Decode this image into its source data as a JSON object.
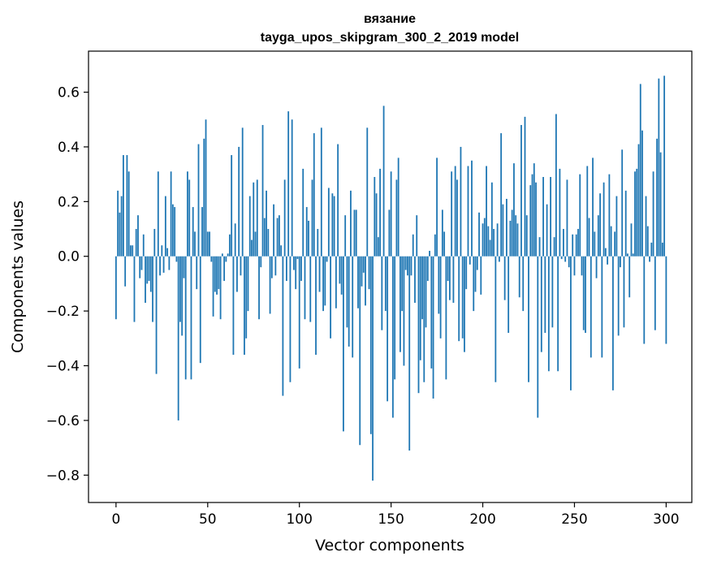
{
  "chart_data": {
    "type": "bar",
    "title_line1": "вязание",
    "title_line2": "tayga_upos_skipgram_300_2_2019 model",
    "xlabel": "Vector components",
    "ylabel": "Components values",
    "xlim": [
      -15,
      314
    ],
    "ylim": [
      -0.9,
      0.75
    ],
    "grid": false,
    "bar_color": "#1f77b4",
    "x_ticks": [
      0,
      50,
      100,
      150,
      200,
      250,
      300
    ],
    "y_ticks": [
      -0.8,
      -0.6,
      -0.4,
      -0.2,
      0.0,
      0.2,
      0.4,
      0.6
    ],
    "x_tick_labels": [
      "0",
      "50",
      "100",
      "150",
      "200",
      "250",
      "300"
    ],
    "y_tick_labels": [
      "−0.8",
      "−0.6",
      "−0.4",
      "−0.2",
      "0.0",
      "0.2",
      "0.4",
      "0.6"
    ],
    "values": [
      -0.23,
      0.24,
      0.16,
      0.22,
      0.37,
      -0.11,
      0.37,
      0.31,
      0.04,
      0.04,
      -0.24,
      0.1,
      0.15,
      -0.08,
      -0.05,
      0.08,
      -0.17,
      -0.1,
      -0.09,
      -0.13,
      -0.24,
      0.1,
      -0.43,
      0.31,
      -0.07,
      0.04,
      -0.06,
      0.22,
      0.03,
      -0.05,
      0.31,
      0.19,
      0.18,
      -0.02,
      -0.6,
      -0.24,
      -0.29,
      -0.08,
      -0.45,
      0.31,
      0.28,
      -0.45,
      0.18,
      0.09,
      -0.12,
      0.41,
      -0.39,
      0.18,
      0.43,
      0.5,
      0.09,
      0.09,
      -0.02,
      -0.22,
      -0.13,
      -0.14,
      -0.12,
      -0.23,
      0.01,
      -0.09,
      -0.02,
      0.01,
      0.08,
      0.37,
      -0.36,
      0.12,
      -0.13,
      0.4,
      -0.07,
      0.47,
      -0.36,
      -0.3,
      -0.2,
      0.22,
      0.06,
      0.27,
      0.09,
      0.28,
      -0.23,
      -0.04,
      0.48,
      0.14,
      0.24,
      0.1,
      -0.21,
      -0.08,
      0.19,
      -0.07,
      0.14,
      0.15,
      0.04,
      -0.51,
      0.28,
      -0.09,
      0.53,
      -0.46,
      0.5,
      -0.05,
      -0.12,
      -0.01,
      -0.41,
      -0.09,
      0.32,
      -0.23,
      0.18,
      0.13,
      -0.24,
      0.28,
      0.45,
      -0.36,
      0.1,
      -0.13,
      0.47,
      -0.2,
      -0.18,
      -0.02,
      0.25,
      -0.3,
      0.23,
      0.22,
      -0.19,
      0.41,
      -0.1,
      -0.14,
      -0.64,
      0.15,
      -0.26,
      -0.33,
      0.24,
      -0.37,
      0.17,
      0.17,
      -0.19,
      -0.69,
      -0.11,
      -0.06,
      -0.18,
      0.47,
      -0.12,
      -0.65,
      -0.82,
      0.29,
      0.23,
      0.07,
      0.32,
      -0.27,
      0.55,
      -0.2,
      -0.53,
      0.17,
      0.31,
      -0.59,
      -0.45,
      0.28,
      0.36,
      -0.35,
      -0.2,
      -0.4,
      -0.05,
      -0.07,
      -0.71,
      -0.07,
      0.08,
      -0.17,
      0.15,
      -0.5,
      -0.38,
      -0.23,
      -0.46,
      -0.26,
      -0.09,
      0.02,
      -0.41,
      -0.52,
      0.08,
      0.36,
      -0.21,
      -0.3,
      0.17,
      0.09,
      -0.45,
      -0.09,
      -0.16,
      0.31,
      -0.17,
      0.33,
      0.28,
      -0.31,
      0.4,
      -0.3,
      -0.35,
      -0.12,
      0.33,
      -0.03,
      0.35,
      -0.2,
      -0.13,
      -0.05,
      0.16,
      -0.14,
      0.12,
      0.14,
      0.33,
      0.11,
      0.06,
      0.27,
      0.1,
      -0.46,
      0.12,
      -0.02,
      0.45,
      0.19,
      -0.16,
      0.21,
      -0.28,
      0.13,
      0.17,
      0.34,
      0.15,
      0.12,
      -0.15,
      0.48,
      -0.2,
      0.51,
      0.15,
      -0.46,
      0.26,
      0.3,
      0.34,
      0.27,
      -0.59,
      0.07,
      -0.35,
      0.29,
      -0.28,
      0.19,
      -0.42,
      0.29,
      -0.26,
      0.07,
      0.52,
      -0.42,
      0.32,
      -0.01,
      0.1,
      -0.02,
      0.28,
      -0.04,
      -0.49,
      0.08,
      -0.07,
      0.08,
      0.1,
      0.3,
      -0.07,
      -0.27,
      -0.28,
      0.33,
      0.14,
      -0.37,
      0.36,
      0.09,
      -0.08,
      0.15,
      0.23,
      -0.37,
      0.27,
      0.03,
      -0.03,
      0.3,
      0.11,
      -0.49,
      0.09,
      0.22,
      -0.29,
      -0.04,
      0.39,
      -0.26,
      0.24,
      0.01,
      -0.15,
      0.12,
      0.01,
      0.31,
      0.32,
      0.41,
      0.63,
      0.46,
      -0.32,
      0.22,
      0.11,
      -0.02,
      0.05,
      0.31,
      -0.27,
      0.43,
      0.65,
      0.38,
      0.05,
      0.66,
      -0.32
    ]
  }
}
